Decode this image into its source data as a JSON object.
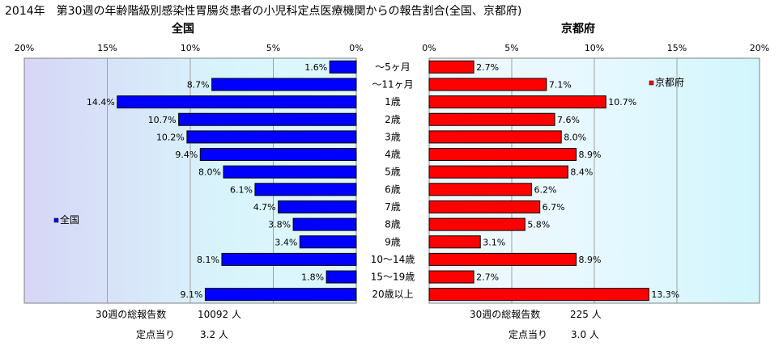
{
  "chart_data": {
    "type": "bar",
    "title": "2014年　第30週の年齢階級別感染性胃腸炎患者の小児科定点医療機関からの報告割合(全国、京都府)",
    "categories": [
      "～5ヶ月",
      "～11ヶ月",
      "1歳",
      "2歳",
      "3歳",
      "4歳",
      "5歳",
      "6歳",
      "7歳",
      "8歳",
      "9歳",
      "10～14歳",
      "15～19歳",
      "20歳以上"
    ],
    "series": [
      {
        "name": "全国",
        "color": "#0000ff",
        "values": [
          1.6,
          8.7,
          14.4,
          10.7,
          10.2,
          9.4,
          8.0,
          6.1,
          4.7,
          3.8,
          3.4,
          8.1,
          1.8,
          9.1
        ],
        "labels": [
          "1.6%",
          "8.7%",
          "14.4%",
          "10.7%",
          "10.2%",
          "9.4%",
          "8.0%",
          "6.1%",
          "4.7%",
          "3.8%",
          "3.4%",
          "8.1%",
          "1.8%",
          "9.1%"
        ]
      },
      {
        "name": "京都府",
        "color": "#ff0000",
        "values": [
          2.7,
          7.1,
          10.7,
          7.6,
          8.0,
          8.9,
          8.4,
          6.2,
          6.7,
          5.8,
          3.1,
          8.9,
          2.7,
          13.3
        ],
        "labels": [
          "2.7%",
          "7.1%",
          "10.7%",
          "7.6%",
          "8.0%",
          "8.9%",
          "8.4%",
          "6.2%",
          "6.7%",
          "5.8%",
          "3.1%",
          "8.9%",
          "2.7%",
          "13.3%"
        ]
      }
    ],
    "panel_titles": [
      "全国",
      "京都府"
    ],
    "legend_labels": [
      "全国",
      "京都府"
    ],
    "xlim": [
      0,
      20
    ],
    "ticks": [
      0,
      5,
      10,
      15,
      20
    ],
    "left_tick_labels": [
      "20%",
      "15%",
      "10%",
      "5%",
      "0%"
    ],
    "right_tick_labels": [
      "0%",
      "5%",
      "10%",
      "15%",
      "20%"
    ],
    "grid": true
  },
  "footer": {
    "national_total_label": "30週の総報告数",
    "national_total_value": "10092 人",
    "national_per_site_label": "定点当り",
    "national_per_site_value": "3.2 人",
    "kyoto_total_label": "30週の総報告数",
    "kyoto_total_value": "225 人",
    "kyoto_per_site_label": "定点当り",
    "kyoto_per_site_value": "3.0 人"
  }
}
